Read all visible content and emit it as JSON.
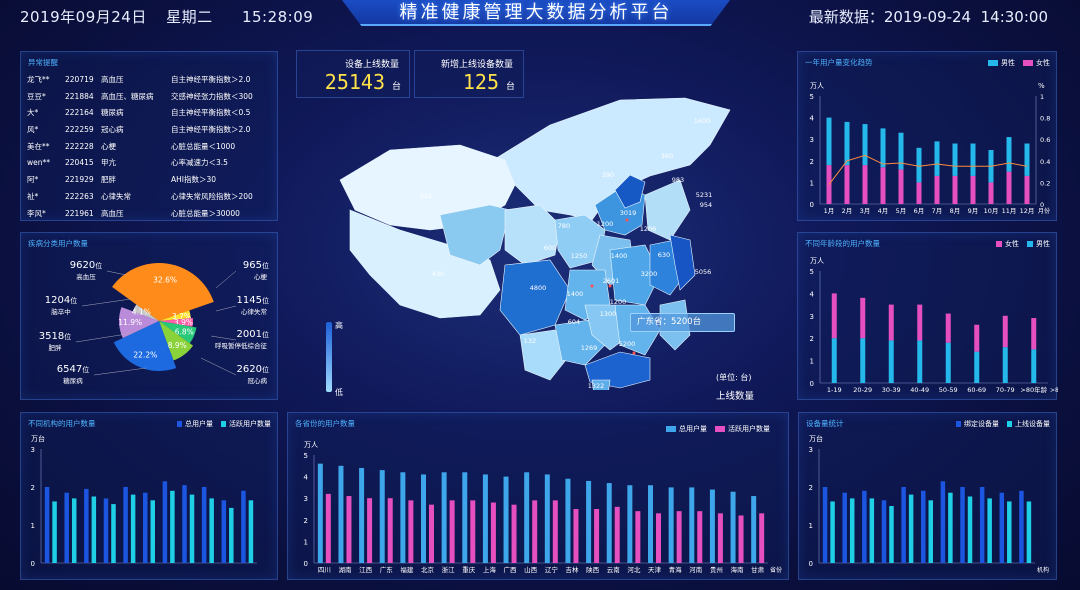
{
  "header": {
    "date": "2019年09月24日",
    "weekday": "星期二",
    "time": "15:28:09",
    "title": "精准健康管理大数据分析平台",
    "latest_label": "最新数据：",
    "latest_date": "2019-09-24",
    "latest_time": "14:30:00"
  },
  "alerts": {
    "title": "异常提醒",
    "rows": [
      {
        "name": "龙飞**",
        "id": "220719",
        "disease": "高血压",
        "detail": "自主神经平衡指数＞2.0"
      },
      {
        "name": "豆豆*",
        "id": "221884",
        "disease": "高血压、糖尿病",
        "detail": "交感神经张力指数＜300"
      },
      {
        "name": "大*",
        "id": "222164",
        "disease": "糖尿病",
        "detail": "自主神经平衡指数＜0.5"
      },
      {
        "name": "风*",
        "id": "222259",
        "disease": "冠心病",
        "detail": "自主神经平衡指数＞2.0"
      },
      {
        "name": "美在**",
        "id": "222228",
        "disease": "心梗",
        "detail": "心脏总能量＜1000"
      },
      {
        "name": "wen**",
        "id": "220415",
        "disease": "甲亢",
        "detail": "心率减速力＜3.5"
      },
      {
        "name": "阿*",
        "id": "221929",
        "disease": "肥胖",
        "detail": "AHI指数＞30"
      },
      {
        "name": "祉*",
        "id": "222263",
        "disease": "心律失常",
        "detail": "心律失常风险指数＞200"
      },
      {
        "name": "李风*",
        "id": "221961",
        "disease": "高血压",
        "detail": "心脏总能量＞30000"
      }
    ]
  },
  "stats": {
    "online_label": "设备上线数量",
    "online_value": "25143",
    "new_label": "新增上线设备数量",
    "new_value": "125",
    "unit": "台"
  },
  "disease_pie": {
    "title": "疾病分类用户数量",
    "unit": "位",
    "labels": [
      {
        "value": "9620",
        "name": "高血压"
      },
      {
        "value": "1204",
        "name": "脑卒中"
      },
      {
        "value": "3518",
        "name": "肥胖"
      },
      {
        "value": "6547",
        "name": "糖尿病"
      },
      {
        "value": "965",
        "name": "心梗"
      },
      {
        "value": "1145",
        "name": "心律失常"
      },
      {
        "value": "2001",
        "name": "呼吸暂停低综合征"
      },
      {
        "value": "2620",
        "name": "冠心病"
      }
    ],
    "slices": [
      {
        "pct": "32.6%",
        "color": "#ff8c1a"
      },
      {
        "pct": "3.7%",
        "color": "#ffe02a"
      },
      {
        "pct": "3.9%",
        "color": "#ff5fa8"
      },
      {
        "pct": "6.8%",
        "color": "#29c97a"
      },
      {
        "pct": "8.9%",
        "color": "#8ad23a"
      },
      {
        "pct": "22.2%",
        "color": "#1d6ae0"
      },
      {
        "pct": "11.9%",
        "color": "#b98bd9"
      },
      {
        "pct": "4.1%",
        "color": "#c8c8c8"
      }
    ]
  },
  "map": {
    "legend_high": "高",
    "legend_low": "低",
    "unit_label": "(单位: 台)",
    "metric": "上线数量",
    "tooltip": "广东省：5200台",
    "values": [
      "1600",
      "360",
      "983",
      "5231",
      "954",
      "322",
      "390",
      "3019",
      "1200",
      "1206",
      "600",
      "780",
      "1250",
      "630",
      "1400",
      "3200",
      "5056",
      "430",
      "4800",
      "2601",
      "1400",
      "1200",
      "604",
      "1300",
      "132",
      "1269",
      "5200",
      "1322"
    ]
  },
  "chart_data": [
    {
      "id": "trend",
      "type": "bar",
      "title": "一年用户量变化趋势",
      "ylabel": "万人",
      "y2label": "%",
      "xlabel": "月份",
      "categories": [
        "1月",
        "2月",
        "3月",
        "4月",
        "5月",
        "6月",
        "7月",
        "8月",
        "9月",
        "10月",
        "11月",
        "12月"
      ],
      "series": [
        {
          "name": "男性",
          "values": [
            2.2,
            2.0,
            1.9,
            1.8,
            1.7,
            1.6,
            1.6,
            1.5,
            1.5,
            1.5,
            1.6,
            1.5
          ]
        },
        {
          "name": "女性",
          "values": [
            1.8,
            1.8,
            1.8,
            1.7,
            1.6,
            1.0,
            1.3,
            1.3,
            1.3,
            1.0,
            1.5,
            1.3
          ]
        }
      ],
      "line": [
        0.18,
        0.4,
        0.45,
        0.37,
        0.38,
        0.35,
        0.37,
        0.35,
        0.35,
        0.35,
        0.38,
        0.35
      ],
      "ylim": [
        0,
        5
      ],
      "y2lim": [
        0,
        1
      ]
    },
    {
      "id": "age",
      "type": "bar",
      "title": "不同年龄段的用户数量",
      "ylabel": "万人",
      "xlabel": ">80年龄",
      "categories": [
        "1-19",
        "20-29",
        "30-39",
        "40-49",
        "50-59",
        "60-69",
        "70-79",
        ">80年龄"
      ],
      "series": [
        {
          "name": "女性",
          "values": [
            2.0,
            1.8,
            1.6,
            1.6,
            1.3,
            1.2,
            1.4,
            1.4
          ]
        },
        {
          "name": "男性",
          "values": [
            2.0,
            2.0,
            1.9,
            1.9,
            1.8,
            1.4,
            1.6,
            1.5
          ]
        }
      ],
      "ylim": [
        0,
        5
      ]
    },
    {
      "id": "institution",
      "type": "bar",
      "title": "不同机构的用户数量",
      "ylabel": "万台",
      "categories": [
        "",
        "",
        "",
        "",
        "",
        "",
        "",
        "",
        "",
        "",
        ""
      ],
      "series": [
        {
          "name": "总用户量",
          "values": [
            2.0,
            1.85,
            1.95,
            1.7,
            2.0,
            1.85,
            2.15,
            2.05,
            2.0,
            1.65,
            1.9
          ]
        },
        {
          "name": "活跃用户数量",
          "values": [
            1.62,
            1.7,
            1.75,
            1.55,
            1.8,
            1.65,
            1.9,
            1.8,
            1.7,
            1.45,
            1.65
          ]
        }
      ],
      "ylim": [
        0,
        3
      ]
    },
    {
      "id": "province",
      "type": "bar",
      "title": "各省份的用户数量",
      "ylabel": "万人",
      "xlabel": "省份",
      "categories": [
        "四川",
        "湖南",
        "江西",
        "广东",
        "福建",
        "北京",
        "浙江",
        "重庆",
        "上海",
        "广西",
        "山西",
        "辽宁",
        "吉林",
        "陕西",
        "云南",
        "河北",
        "天津",
        "青海",
        "河南",
        "贵州",
        "海南",
        "甘肃"
      ],
      "series": [
        {
          "name": "总用户量",
          "values": [
            4.6,
            4.5,
            4.4,
            4.3,
            4.2,
            4.1,
            4.2,
            4.2,
            4.1,
            4.0,
            4.2,
            4.1,
            3.9,
            3.8,
            3.7,
            3.6,
            3.6,
            3.5,
            3.5,
            3.4,
            3.3,
            3.1
          ]
        },
        {
          "name": "活跃用户数量",
          "values": [
            3.2,
            3.1,
            3.0,
            3.0,
            2.9,
            2.7,
            2.9,
            2.9,
            2.8,
            2.7,
            2.9,
            2.9,
            2.5,
            2.5,
            2.6,
            2.4,
            2.3,
            2.4,
            2.4,
            2.3,
            2.2,
            2.3
          ]
        }
      ],
      "ylim": [
        0,
        5
      ]
    },
    {
      "id": "devices",
      "type": "bar",
      "title": "设备量统计",
      "ylabel": "万台",
      "xlabel": "机构",
      "categories": [
        "",
        "",
        "",
        "",
        "",
        "",
        "",
        "",
        "",
        "",
        ""
      ],
      "series": [
        {
          "name": "绑定设备量",
          "values": [
            2.0,
            1.85,
            1.9,
            1.65,
            2.0,
            1.9,
            2.15,
            2.0,
            2.0,
            1.85,
            1.9
          ]
        },
        {
          "name": "上线设备量",
          "values": [
            1.62,
            1.7,
            1.7,
            1.5,
            1.8,
            1.65,
            1.85,
            1.75,
            1.7,
            1.62,
            1.62
          ]
        }
      ],
      "ylim": [
        0,
        3
      ]
    }
  ],
  "colors": {
    "accent": "#4fb2ff",
    "male": "#25b8ea",
    "female": "#e64fbf",
    "dark_blue": "#1b55e0",
    "cyan": "#1fcfe6",
    "highlight": "#ffe14a"
  }
}
